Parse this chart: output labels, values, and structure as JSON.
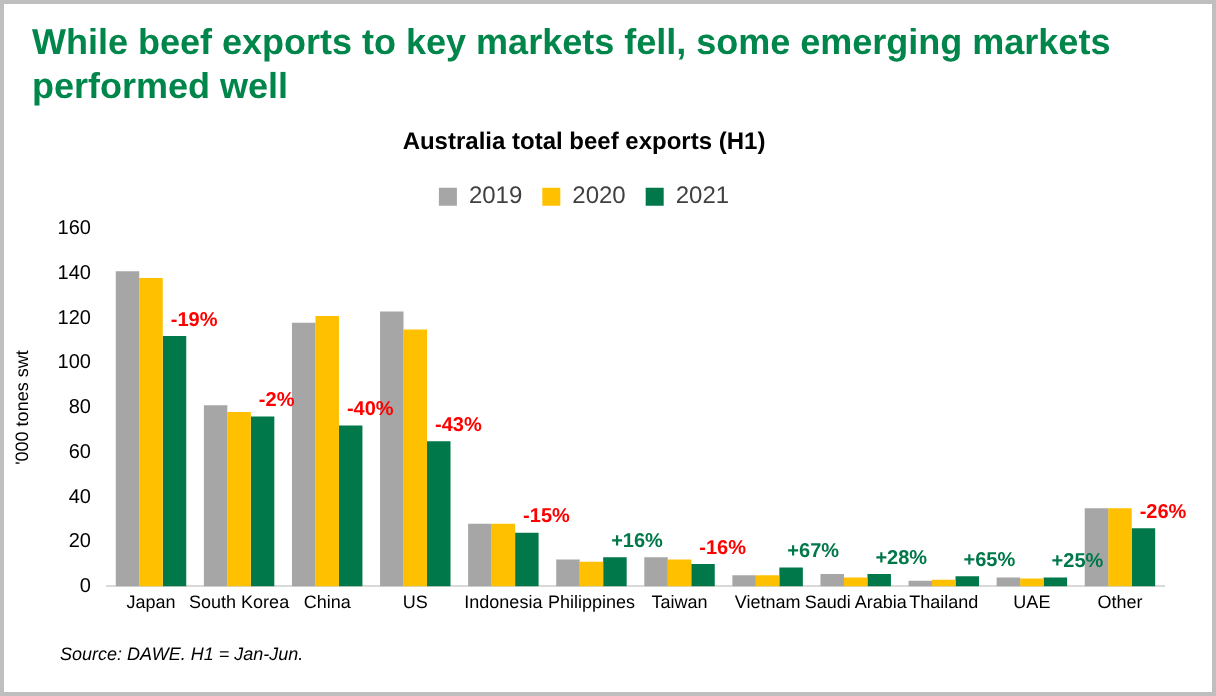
{
  "chart_data": {
    "type": "bar",
    "title": "While beef exports to key markets fell, some emerging markets performed well",
    "subtitle": "Australia total beef exports (H1)",
    "ylabel": "'000 tones swt",
    "categories": [
      "Japan",
      "South Korea",
      "China",
      "US",
      "Indonesia",
      "Philippines",
      "Taiwan",
      "Vietnam",
      "Saudi Arabia",
      "Thailand",
      "UAE",
      "Other"
    ],
    "series": [
      {
        "name": "2019",
        "color": "#a6a6a6",
        "values": [
          141,
          81,
          118,
          123,
          28,
          12,
          13,
          5,
          5.5,
          2.5,
          4,
          35
        ]
      },
      {
        "name": "2020",
        "color": "#ffc000",
        "values": [
          138,
          78,
          121,
          115,
          28,
          11,
          12,
          5,
          4,
          3,
          3.5,
          35
        ]
      },
      {
        "name": "2021",
        "color": "#00784a",
        "values": [
          112,
          76,
          72,
          65,
          24,
          13,
          10,
          8.5,
          5.5,
          4.5,
          4,
          26
        ]
      }
    ],
    "ylim": [
      0,
      160
    ],
    "yticks": [
      0,
      20,
      40,
      60,
      80,
      100,
      120,
      140,
      160
    ],
    "grid": false,
    "legend": "top",
    "annotations": [
      "-19%",
      "-2%",
      "-40%",
      "-43%",
      "-15%",
      "+16%",
      "-16%",
      "+67%",
      "+28%",
      "+65%",
      "+25%",
      "-26%",
      "Source: DAWE. H1 = Jan-Jun."
    ]
  }
}
